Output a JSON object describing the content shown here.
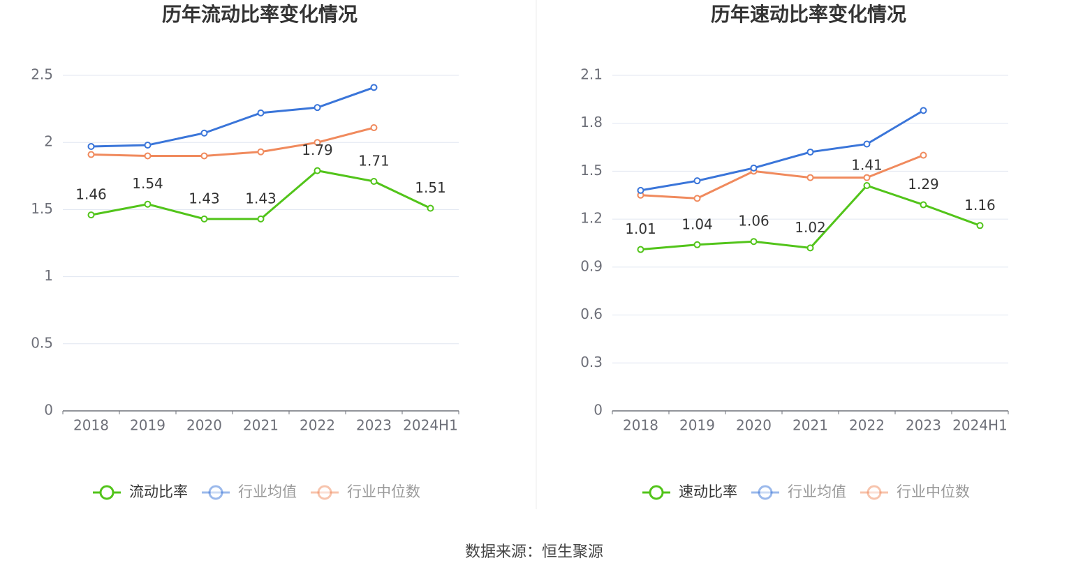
{
  "chart_data": [
    {
      "type": "line",
      "title": "历年流动比率变化情况",
      "categories": [
        "2018",
        "2019",
        "2020",
        "2021",
        "2022",
        "2023",
        "2024H1"
      ],
      "series": [
        {
          "name": "流动比率",
          "color": "#52c41a",
          "values": [
            1.46,
            1.54,
            1.43,
            1.43,
            1.79,
            1.71,
            1.51
          ],
          "labels": true
        },
        {
          "name": "行业均值",
          "color": "#3a75d9",
          "values": [
            1.97,
            1.98,
            2.07,
            2.22,
            2.26,
            2.41,
            null
          ]
        },
        {
          "name": "行业中位数",
          "color": "#f08a5d",
          "values": [
            1.91,
            1.9,
            1.9,
            1.93,
            2.0,
            2.11,
            null
          ]
        }
      ],
      "ylim": [
        0,
        2.5
      ],
      "yticks": [
        0,
        0.5,
        1,
        1.5,
        2,
        2.5
      ],
      "grid": true
    },
    {
      "type": "line",
      "title": "历年速动比率变化情况",
      "categories": [
        "2018",
        "2019",
        "2020",
        "2021",
        "2022",
        "2023",
        "2024H1"
      ],
      "series": [
        {
          "name": "速动比率",
          "color": "#52c41a",
          "values": [
            1.01,
            1.04,
            1.06,
            1.02,
            1.41,
            1.29,
            1.16
          ],
          "labels": true
        },
        {
          "name": "行业均值",
          "color": "#3a75d9",
          "values": [
            1.38,
            1.44,
            1.52,
            1.62,
            1.67,
            1.88,
            null
          ]
        },
        {
          "name": "行业中位数",
          "color": "#f08a5d",
          "values": [
            1.35,
            1.33,
            1.5,
            1.46,
            1.46,
            1.6,
            null
          ]
        }
      ],
      "ylim": [
        0,
        2.1
      ],
      "yticks": [
        0,
        0.3,
        0.6,
        0.9,
        1.2,
        1.5,
        1.8,
        2.1
      ],
      "grid": true
    }
  ],
  "source": "数据来源：恒生聚源"
}
